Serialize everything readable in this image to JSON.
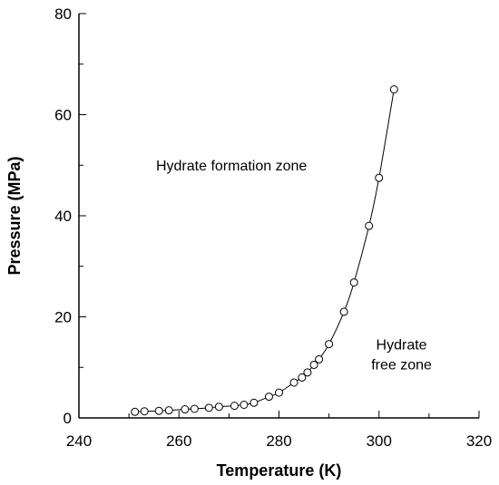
{
  "chart_data": {
    "type": "scatter",
    "title": "",
    "xlabel": "Temperature (K)",
    "ylabel": "Pressure (MPa)",
    "xlim": [
      240,
      320
    ],
    "ylim": [
      0,
      80
    ],
    "xticks": [
      "240",
      "260",
      "280",
      "300",
      "320"
    ],
    "yticks": [
      "0",
      "20",
      "40",
      "60",
      "80"
    ],
    "grid": false,
    "legend": "none",
    "annotations": [
      {
        "id": "formation",
        "lines": [
          "Hydrate formation zone"
        ],
        "x": 270.5,
        "y": 49
      },
      {
        "id": "free",
        "lines": [
          "Hydrate",
          "free zone"
        ],
        "x": 304.5,
        "y": 13.5
      }
    ],
    "series": [
      {
        "marker": "open-circle",
        "line": "smooth",
        "x": [
          251.2,
          253.1,
          256.0,
          258.0,
          261.2,
          263.1,
          266.0,
          268.0,
          271.1,
          273.0,
          275.0,
          278.0,
          280.0,
          283.0,
          284.6,
          285.7,
          287.0,
          288.0,
          290.0,
          293.0,
          295.0,
          298.0,
          300.0,
          303.0
        ],
        "y": [
          1.2,
          1.3,
          1.4,
          1.5,
          1.7,
          1.8,
          2.0,
          2.2,
          2.4,
          2.6,
          3.0,
          4.2,
          5.0,
          7.0,
          8.0,
          9.0,
          10.5,
          11.6,
          14.6,
          21.0,
          26.8,
          38.0,
          47.5,
          65.0
        ]
      }
    ]
  }
}
